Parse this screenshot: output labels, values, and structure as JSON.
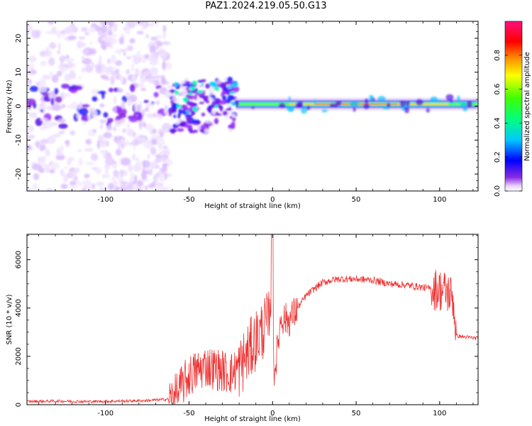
{
  "title": "PAZ1.2024.219.05.50.G13",
  "colors": {
    "snr_line": "#ee3333",
    "axis": "#000000",
    "background": "#ffffff"
  },
  "chart_data": [
    {
      "type": "heatmap",
      "name": "spectrogram",
      "xlabel": "Height of straight line (km)",
      "ylabel": "Frequency (Hz)",
      "xlim": [
        -147,
        123
      ],
      "ylim": [
        -25,
        25
      ],
      "xticks": [
        -100,
        -50,
        0,
        50,
        100
      ],
      "yticks": [
        -20,
        -10,
        0,
        10,
        20
      ],
      "colorbar": {
        "label": "Normalized spectral amplitude",
        "range": [
          0,
          1
        ],
        "ticks": [
          0.0,
          0.2,
          0.4,
          0.6,
          0.8
        ],
        "colormap": "gist_rainbow_r"
      },
      "description_regions": [
        {
          "x_range": [
            -147,
            -62
          ],
          "freq_range": [
            -25,
            25
          ],
          "level": "noise"
        },
        {
          "x_range": [
            -62,
            -22
          ],
          "freq_range": [
            -8,
            8
          ],
          "level": "medium"
        },
        {
          "x_range": [
            -22,
            123
          ],
          "freq_center": 0.6,
          "level": "strong_line"
        }
      ]
    },
    {
      "type": "line",
      "name": "snr",
      "xlabel": "Height of straight line (km)",
      "ylabel": "SNR (10 * v/v)",
      "xlim": [
        -147,
        123
      ],
      "ylim": [
        0,
        7050
      ],
      "xticks": [
        -100,
        -50,
        0,
        50,
        100
      ],
      "yticks": [
        0,
        2000,
        4000,
        6000
      ],
      "series": [
        {
          "x": [
            -147,
            -130,
            -110,
            -90,
            -75,
            -62,
            -58,
            -55,
            -50,
            -45,
            -40,
            -35,
            -30,
            -25,
            -20,
            -15,
            -10,
            -5,
            -2,
            0,
            1,
            5,
            10,
            15,
            20,
            25,
            30,
            35,
            40,
            50,
            60,
            70,
            80,
            90,
            95,
            100,
            103,
            106,
            108,
            110,
            115,
            123
          ],
          "y": [
            130,
            150,
            130,
            150,
            170,
            230,
            400,
            700,
            1200,
            1400,
            1600,
            1500,
            1400,
            1300,
            1500,
            2100,
            2700,
            3200,
            3500,
            5000,
            1200,
            3600,
            3500,
            4000,
            4500,
            4800,
            5050,
            5150,
            5200,
            5200,
            5150,
            5000,
            4950,
            4850,
            4800,
            4750,
            4700,
            4600,
            4400,
            2850,
            2800,
            2750
          ]
        }
      ]
    }
  ]
}
